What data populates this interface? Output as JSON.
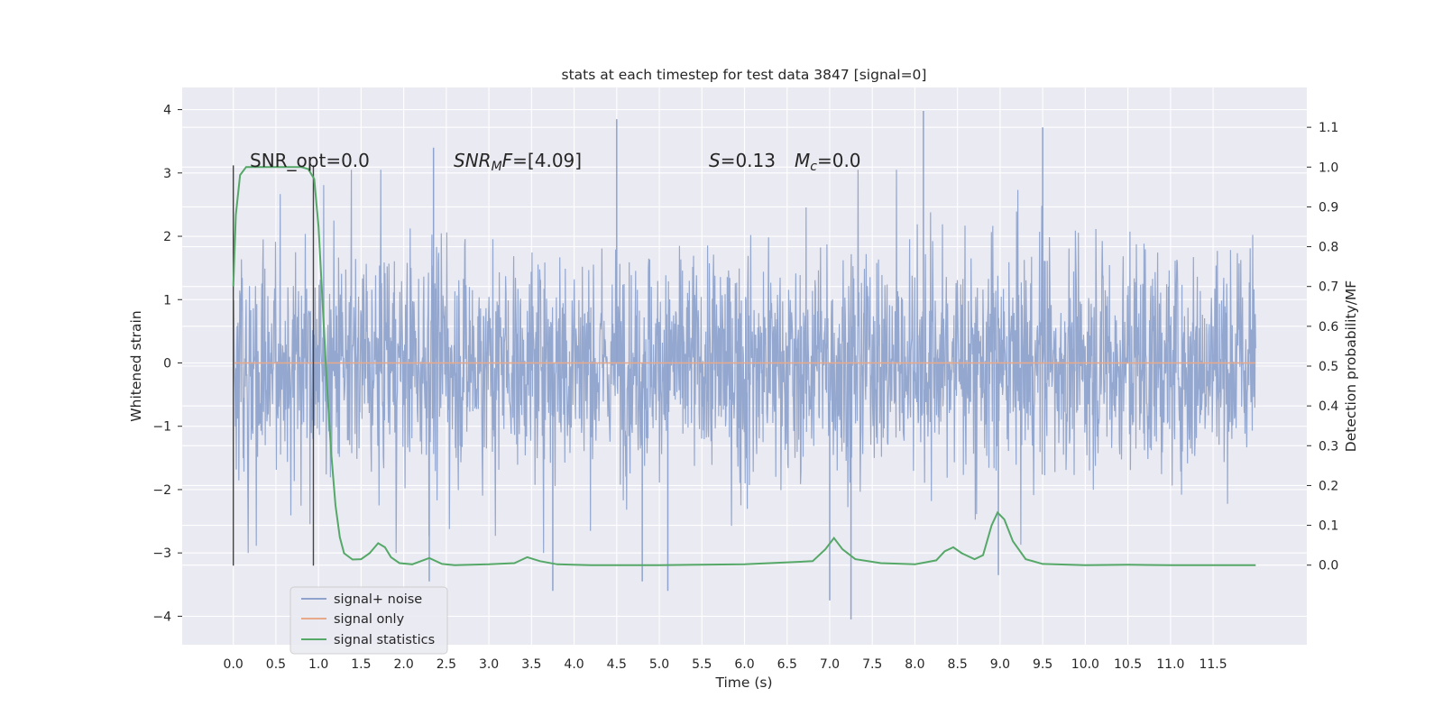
{
  "chart_data": {
    "type": "line",
    "title": "stats at each timestep for test data 3847 [signal=0]",
    "xlabel": "Time (s)",
    "ylabel": "Whitened strain",
    "ylabel_right": "Detection probability/MF",
    "xlim": [
      -0.6,
      12.6
    ],
    "ylim": [
      -4.45,
      4.35
    ],
    "ylim_right": [
      -0.2,
      1.2
    ],
    "x_ticks": [
      "0.0",
      "0.5",
      "1.0",
      "1.5",
      "2.0",
      "2.5",
      "3.0",
      "3.5",
      "4.0",
      "4.5",
      "5.0",
      "5.5",
      "6.0",
      "6.5",
      "7.0",
      "7.5",
      "8.0",
      "8.5",
      "9.0",
      "9.5",
      "10.0",
      "10.5",
      "11.0",
      "11.5"
    ],
    "y_ticks": [
      "4",
      "3",
      "2",
      "1",
      "0",
      "−1",
      "−2",
      "−3",
      "−4"
    ],
    "y_right_ticks": [
      "1.1",
      "1.0",
      "0.9",
      "0.8",
      "0.7",
      "0.6",
      "0.5",
      "0.4",
      "0.3",
      "0.2",
      "0.1",
      "0.0"
    ],
    "grid": true,
    "legend_position": "lower-left",
    "annotations": {
      "snr_opt": "SNR_opt=0.0",
      "snr_mf_name": "SNR",
      "snr_mf_sub": "M",
      "snr_mf_tail": "F=[4.09]",
      "s_name": "S",
      "s_value": "=0.13",
      "mc_name": "M",
      "mc_sub": "c",
      "mc_value": "=0.0"
    },
    "vlines": [
      0.0,
      0.94
    ],
    "series": [
      {
        "name": "signal+ noise",
        "color": "#8fa3cc",
        "description": "whitened noise from 0 to 12 s, mostly within ±2.5 with peaks up to about ±4",
        "x_range": [
          0,
          12
        ],
        "peaks": [
          {
            "x": 4.5,
            "y": 3.85
          },
          {
            "x": 8.1,
            "y": 3.98
          },
          {
            "x": 9.5,
            "y": 3.72
          },
          {
            "x": 7.25,
            "y": -4.05
          },
          {
            "x": 7.0,
            "y": -3.75
          },
          {
            "x": 3.75,
            "y": -3.6
          },
          {
            "x": 5.1,
            "y": -3.6
          },
          {
            "x": 4.8,
            "y": -3.45
          },
          {
            "x": 2.3,
            "y": -3.45
          },
          {
            "x": 8.98,
            "y": -3.35
          },
          {
            "x": 2.35,
            "y": 3.4
          }
        ]
      },
      {
        "name": "signal only",
        "color": "#e8a98a",
        "x": [
          0,
          12
        ],
        "y": [
          0,
          0
        ]
      },
      {
        "name": "signal statistics",
        "color": "#55a868",
        "axis": "right",
        "x": [
          0.0,
          0.03,
          0.08,
          0.15,
          0.3,
          0.5,
          0.8,
          0.88,
          0.95,
          1.0,
          1.05,
          1.1,
          1.15,
          1.2,
          1.25,
          1.3,
          1.4,
          1.5,
          1.6,
          1.7,
          1.78,
          1.85,
          1.95,
          2.1,
          2.3,
          2.45,
          2.6,
          3.0,
          3.3,
          3.45,
          3.6,
          3.8,
          4.2,
          5.0,
          6.0,
          6.8,
          6.95,
          7.05,
          7.15,
          7.3,
          7.6,
          8.0,
          8.25,
          8.35,
          8.45,
          8.55,
          8.7,
          8.8,
          8.9,
          8.97,
          9.05,
          9.15,
          9.3,
          9.5,
          10.0,
          10.5,
          11.0,
          11.5,
          12.0
        ],
        "y": [
          0.7,
          0.88,
          0.98,
          1.0,
          1.0,
          1.0,
          1.0,
          0.995,
          0.97,
          0.85,
          0.65,
          0.45,
          0.28,
          0.15,
          0.07,
          0.03,
          0.014,
          0.015,
          0.03,
          0.055,
          0.045,
          0.02,
          0.005,
          0.002,
          0.018,
          0.003,
          0.0,
          0.002,
          0.005,
          0.02,
          0.01,
          0.002,
          0.0,
          0.0,
          0.002,
          0.01,
          0.04,
          0.068,
          0.04,
          0.015,
          0.005,
          0.002,
          0.012,
          0.035,
          0.045,
          0.03,
          0.015,
          0.025,
          0.1,
          0.132,
          0.115,
          0.06,
          0.015,
          0.003,
          0.0,
          0.001,
          0.0,
          0.0,
          0.0
        ]
      }
    ]
  }
}
